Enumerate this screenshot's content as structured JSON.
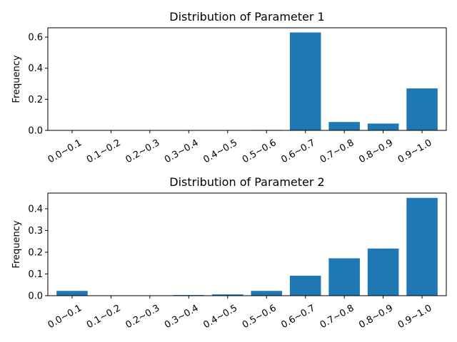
{
  "chart_data": [
    {
      "type": "bar",
      "title": "Distribution of Parameter 1",
      "xlabel": "",
      "ylabel": "Frequency",
      "categories": [
        "0.0~0.1",
        "0.1~0.2",
        "0.2~0.3",
        "0.3~0.4",
        "0.4~0.5",
        "0.5~0.6",
        "0.6~0.7",
        "0.7~0.8",
        "0.8~0.9",
        "0.9~1.0"
      ],
      "values": [
        0,
        0,
        0,
        0,
        0,
        0.003,
        0.63,
        0.054,
        0.044,
        0.27
      ],
      "ylim": [
        0,
        0.66
      ],
      "yticks": [
        0.0,
        0.2,
        0.4,
        0.6
      ],
      "ytick_labels": [
        "0.0",
        "0.2",
        "0.4",
        "0.6"
      ],
      "bar_color": "#1f77b4",
      "grid": false
    },
    {
      "type": "bar",
      "title": "Distribution of Parameter 2",
      "xlabel": "",
      "ylabel": "Frequency",
      "categories": [
        "0.0~0.1",
        "0.1~0.2",
        "0.2~0.3",
        "0.3~0.4",
        "0.4~0.5",
        "0.5~0.6",
        "0.6~0.7",
        "0.7~0.8",
        "0.8~0.9",
        "0.9~1.0"
      ],
      "values": [
        0.022,
        0,
        0,
        0.003,
        0.006,
        0.022,
        0.092,
        0.172,
        0.217,
        0.45
      ],
      "ylim": [
        0,
        0.472
      ],
      "yticks": [
        0.0,
        0.1,
        0.2,
        0.3,
        0.4
      ],
      "ytick_labels": [
        "0.0",
        "0.1",
        "0.2",
        "0.3",
        "0.4"
      ],
      "bar_color": "#1f77b4",
      "grid": false
    }
  ]
}
